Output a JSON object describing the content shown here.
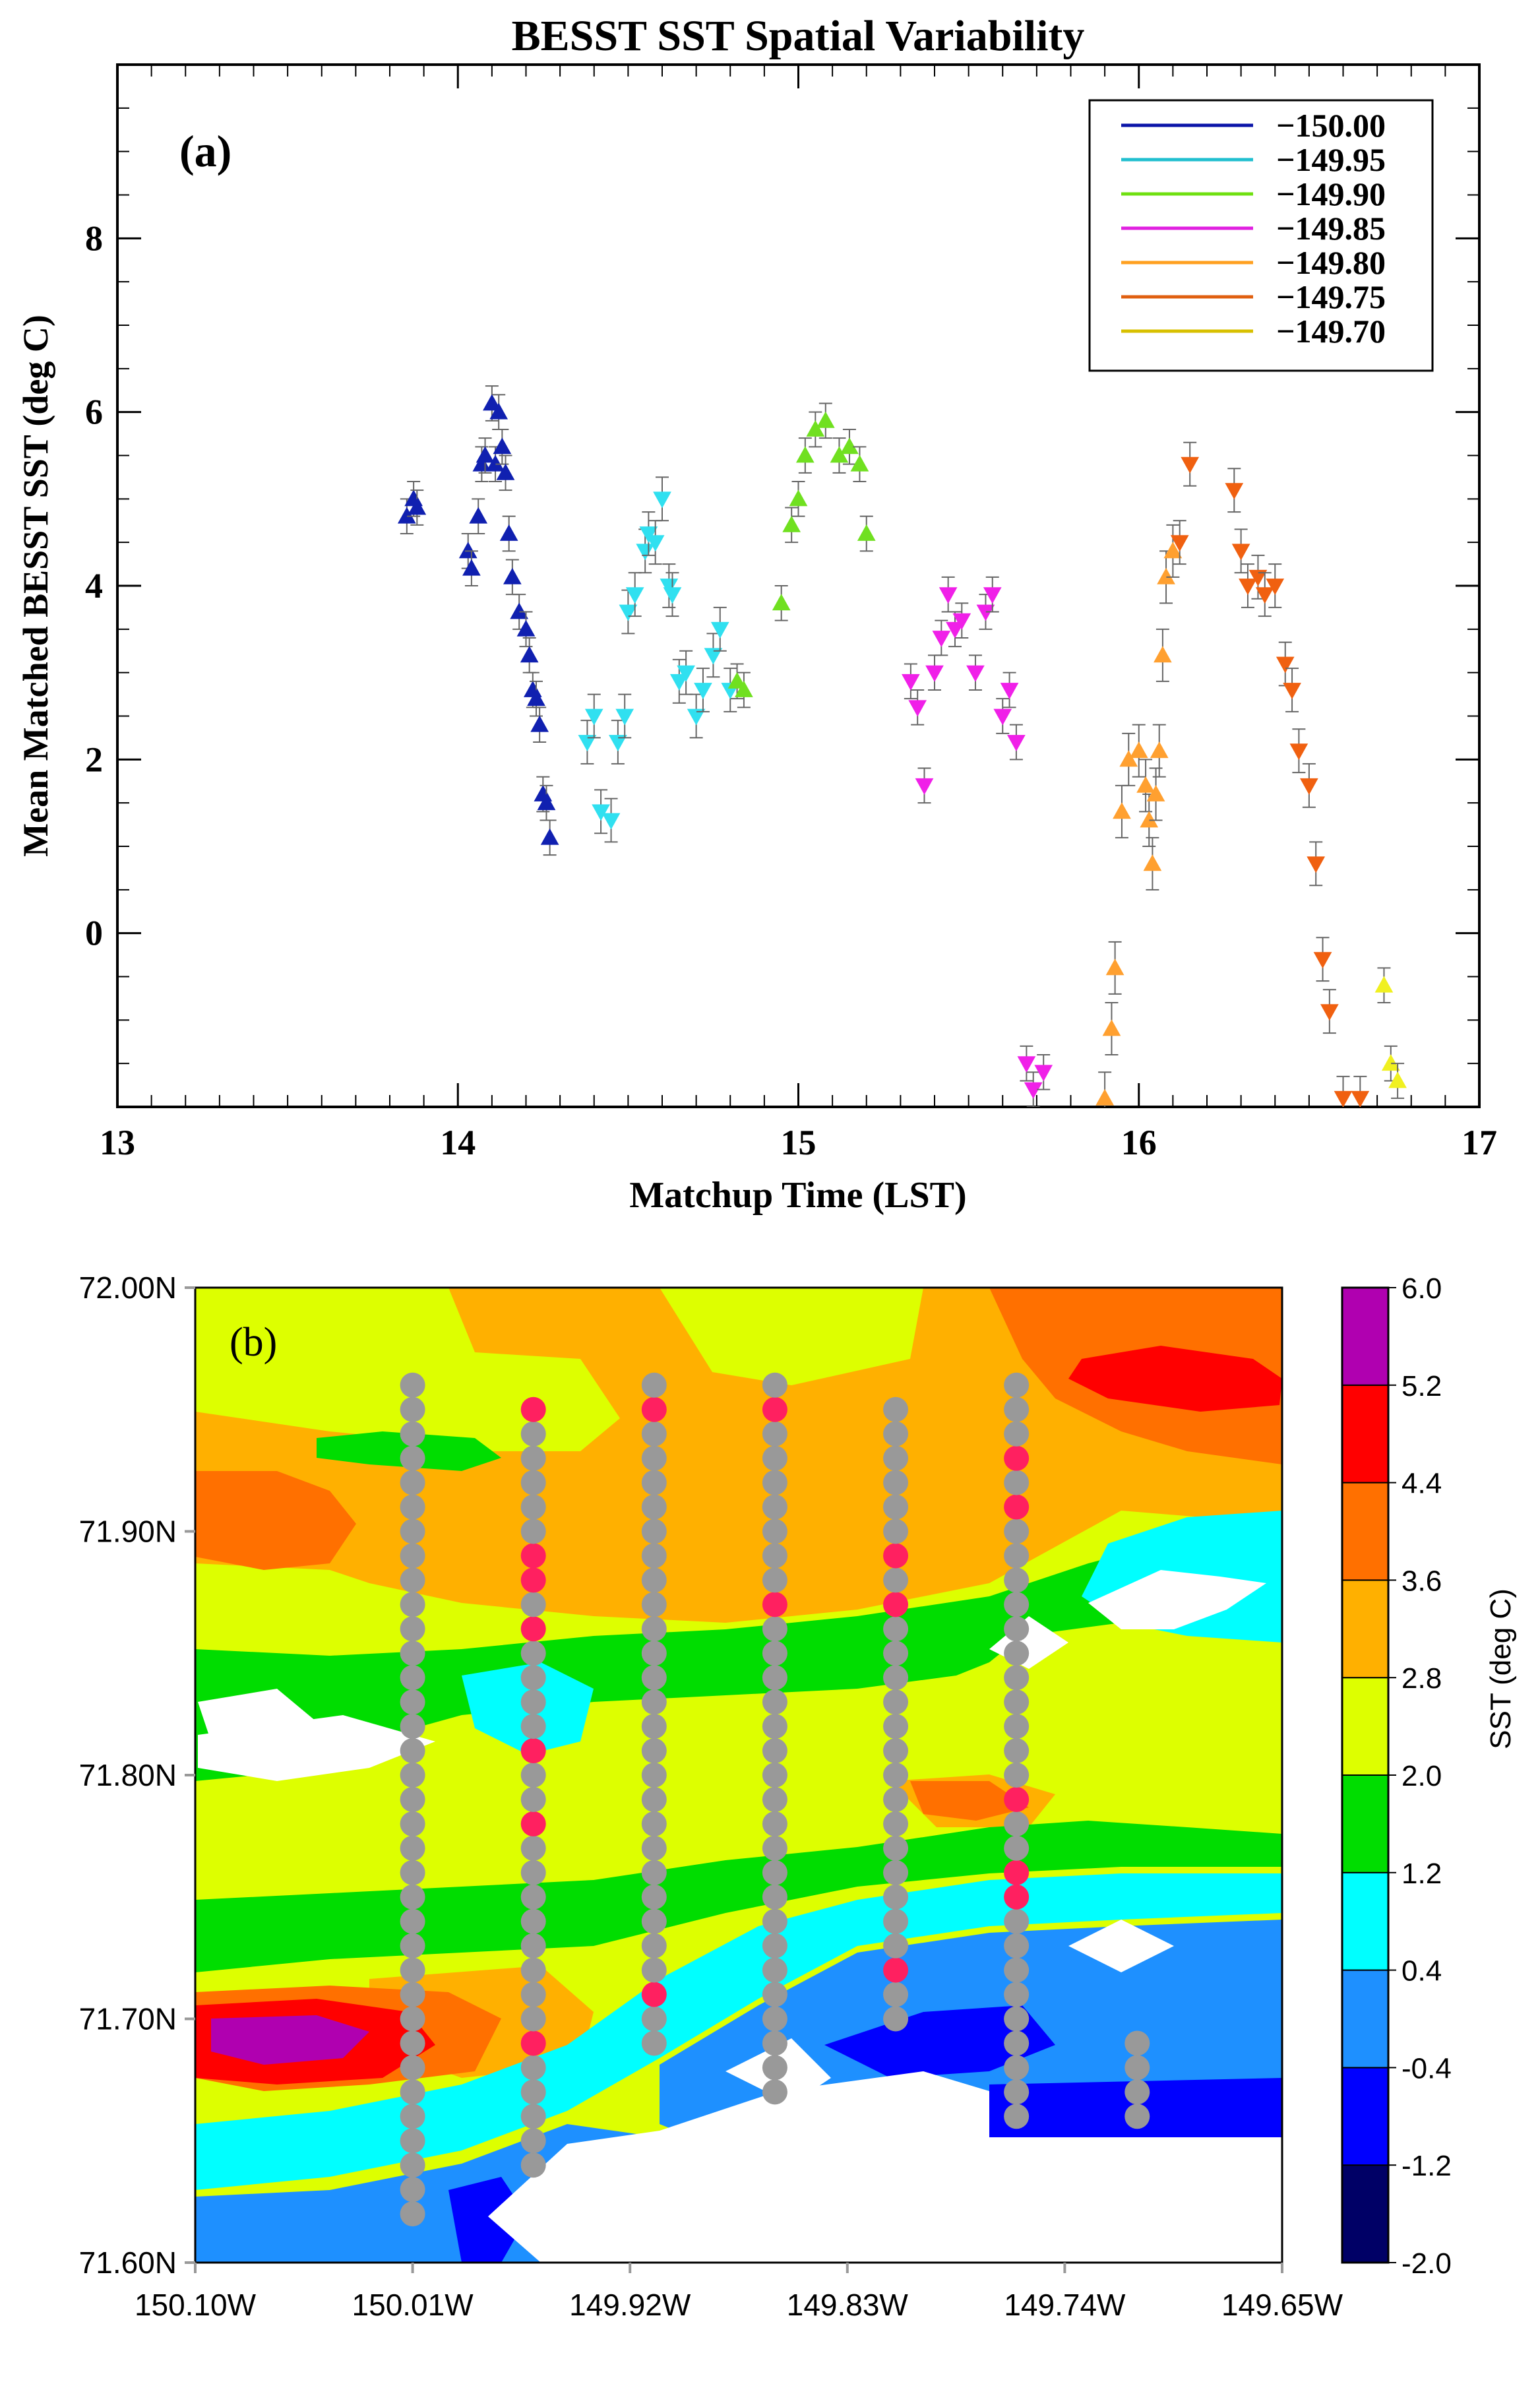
{
  "figure_title": "BESST SST Spatial Variability",
  "colors": {
    "series": [
      "#0a14a8",
      "#20bfcf",
      "#6fe010",
      "#e020e0",
      "#ffa020",
      "#e06010",
      "#d8c000"
    ],
    "point_series": [
      "#1020b0",
      "#30e0f0",
      "#70e020",
      "#f020e8",
      "#ffa030",
      "#f06010",
      "#f0f020"
    ],
    "marker_gray": "#999999",
    "marker_red": "#ff2060",
    "contour_levels": [
      "#000066",
      "#0000ff",
      "#1e90ff",
      "#00ffff",
      "#00dd00",
      "#ddff00",
      "#ffb000",
      "#ff7000",
      "#ff0000",
      "#b000b0"
    ]
  },
  "chart_data": [
    {
      "type": "scatter",
      "panel_label": "(a)",
      "title": "BESST SST Spatial Variability",
      "xlabel": "Matchup Time (LST)",
      "ylabel": "Mean Matched BESST SST (deg C)",
      "xlim": [
        13,
        17
      ],
      "ylim": [
        -2,
        10
      ],
      "xticks": [
        "13",
        "14",
        "15",
        "16",
        "17"
      ],
      "yticks": [
        "0",
        "2",
        "4",
        "6",
        "8"
      ],
      "legend_position": "top-right",
      "series": [
        {
          "name": "−150.00",
          "marker": "triangle-up",
          "points": [
            [
              13.85,
              4.8
            ],
            [
              13.87,
              5.0
            ],
            [
              13.88,
              4.9
            ],
            [
              14.03,
              4.4
            ],
            [
              14.04,
              4.2
            ],
            [
              14.06,
              4.8
            ],
            [
              14.07,
              5.4
            ],
            [
              14.08,
              5.5
            ],
            [
              14.1,
              6.1
            ],
            [
              14.11,
              5.4
            ],
            [
              14.12,
              6.0
            ],
            [
              14.13,
              5.6
            ],
            [
              14.14,
              5.3
            ],
            [
              14.15,
              4.6
            ],
            [
              14.16,
              4.1
            ],
            [
              14.18,
              3.7
            ],
            [
              14.2,
              3.5
            ],
            [
              14.21,
              3.2
            ],
            [
              14.22,
              2.8
            ],
            [
              14.23,
              2.7
            ],
            [
              14.24,
              2.4
            ],
            [
              14.25,
              1.6
            ],
            [
              14.26,
              1.5
            ],
            [
              14.27,
              1.1
            ]
          ],
          "err": 0.2
        },
        {
          "name": "−149.95",
          "marker": "triangle-down",
          "points": [
            [
              14.38,
              2.2
            ],
            [
              14.4,
              2.5
            ],
            [
              14.42,
              1.4
            ],
            [
              14.45,
              1.3
            ],
            [
              14.47,
              2.2
            ],
            [
              14.49,
              2.5
            ],
            [
              14.5,
              3.7
            ],
            [
              14.52,
              3.9
            ],
            [
              14.55,
              4.4
            ],
            [
              14.56,
              4.6
            ],
            [
              14.58,
              4.5
            ],
            [
              14.6,
              5.0
            ],
            [
              14.62,
              4.0
            ],
            [
              14.63,
              3.9
            ],
            [
              14.65,
              2.9
            ],
            [
              14.67,
              3.0
            ],
            [
              14.7,
              2.5
            ],
            [
              14.72,
              2.8
            ],
            [
              14.75,
              3.2
            ],
            [
              14.77,
              3.5
            ],
            [
              14.8,
              2.8
            ]
          ],
          "err": 0.25
        },
        {
          "name": "−149.90",
          "marker": "triangle-up",
          "points": [
            [
              14.82,
              2.9
            ],
            [
              14.84,
              2.8
            ],
            [
              14.95,
              3.8
            ],
            [
              14.98,
              4.7
            ],
            [
              15.0,
              5.0
            ],
            [
              15.02,
              5.5
            ],
            [
              15.05,
              5.8
            ],
            [
              15.08,
              5.9
            ],
            [
              15.12,
              5.5
            ],
            [
              15.15,
              5.6
            ],
            [
              15.18,
              5.4
            ],
            [
              15.2,
              4.6
            ]
          ],
          "err": 0.2
        },
        {
          "name": "−149.85",
          "marker": "triangle-down",
          "points": [
            [
              15.33,
              2.9
            ],
            [
              15.35,
              2.6
            ],
            [
              15.37,
              1.7
            ],
            [
              15.4,
              3.0
            ],
            [
              15.42,
              3.4
            ],
            [
              15.44,
              3.9
            ],
            [
              15.46,
              3.5
            ],
            [
              15.48,
              3.6
            ],
            [
              15.52,
              3.0
            ],
            [
              15.55,
              3.7
            ],
            [
              15.57,
              3.9
            ],
            [
              15.6,
              2.5
            ],
            [
              15.62,
              2.8
            ],
            [
              15.64,
              2.2
            ],
            [
              15.67,
              -1.5
            ],
            [
              15.69,
              -1.8
            ],
            [
              15.72,
              -1.6
            ]
          ],
          "err": 0.2
        },
        {
          "name": "−149.80",
          "marker": "triangle-up",
          "points": [
            [
              15.9,
              -1.9
            ],
            [
              15.92,
              -1.1
            ],
            [
              15.93,
              -0.4
            ],
            [
              15.95,
              1.4
            ],
            [
              15.97,
              2.0
            ],
            [
              16.0,
              2.1
            ],
            [
              16.02,
              1.7
            ],
            [
              16.03,
              1.3
            ],
            [
              16.04,
              0.8
            ],
            [
              16.05,
              1.6
            ],
            [
              16.06,
              2.1
            ],
            [
              16.07,
              3.2
            ],
            [
              16.08,
              4.1
            ],
            [
              16.1,
              4.4
            ]
          ],
          "err": 0.3
        },
        {
          "name": "−149.75",
          "marker": "triangle-down",
          "points": [
            [
              16.12,
              4.5
            ],
            [
              16.15,
              5.4
            ],
            [
              16.28,
              5.1
            ],
            [
              16.3,
              4.4
            ],
            [
              16.32,
              4.0
            ],
            [
              16.35,
              4.1
            ],
            [
              16.37,
              3.9
            ],
            [
              16.4,
              4.0
            ],
            [
              16.43,
              3.1
            ],
            [
              16.45,
              2.8
            ],
            [
              16.47,
              2.1
            ],
            [
              16.5,
              1.7
            ],
            [
              16.52,
              0.8
            ],
            [
              16.54,
              -0.3
            ],
            [
              16.56,
              -0.9
            ],
            [
              16.6,
              -1.9
            ],
            [
              16.65,
              -1.9
            ]
          ],
          "err": 0.25
        },
        {
          "name": "−149.70",
          "marker": "triangle-up",
          "points": [
            [
              16.72,
              -0.6
            ],
            [
              16.74,
              -1.5
            ],
            [
              16.76,
              -1.7
            ]
          ],
          "err": 0.2
        }
      ]
    },
    {
      "type": "heatmap",
      "panel_label": "(b)",
      "colorbar_label": "SST (deg C)",
      "colorbar_levels": [
        "6.0",
        "5.2",
        "4.4",
        "3.6",
        "2.8",
        "2.0",
        "1.2",
        "0.4",
        "-0.4",
        "-1.2",
        "-2.0"
      ],
      "x_range": [
        -150.1,
        -149.65
      ],
      "y_range": [
        71.6,
        72.0
      ],
      "xticks": [
        "150.10W",
        "150.01W",
        "149.92W",
        "149.83W",
        "149.74W",
        "149.65W"
      ],
      "yticks": [
        "72.00N",
        "71.90N",
        "71.80N",
        "71.70N",
        "71.60N"
      ],
      "tracks": [
        {
          "lon": -150.01,
          "lat_start": 71.62,
          "lat_end": 71.96,
          "red": []
        },
        {
          "lon": -149.96,
          "lat_start": 71.64,
          "lat_end": 71.95,
          "red": [
            71.95,
            71.89,
            71.88,
            71.86,
            71.81,
            71.78,
            71.69
          ]
        },
        {
          "lon": -149.91,
          "lat_start": 71.69,
          "lat_end": 71.96,
          "red": [
            71.95,
            71.71
          ]
        },
        {
          "lon": -149.86,
          "lat_start": 71.67,
          "lat_end": 71.96,
          "red": [
            71.95,
            71.87
          ]
        },
        {
          "lon": -149.81,
          "lat_start": 71.7,
          "lat_end": 71.95,
          "red": [
            71.89,
            71.87,
            71.72
          ]
        },
        {
          "lon": -149.76,
          "lat_start": 71.66,
          "lat_end": 71.96,
          "red": [
            71.93,
            71.91,
            71.79,
            71.76,
            71.75
          ]
        },
        {
          "lon": -149.71,
          "lat_start": 71.66,
          "lat_end": 71.69,
          "red": []
        }
      ]
    }
  ]
}
